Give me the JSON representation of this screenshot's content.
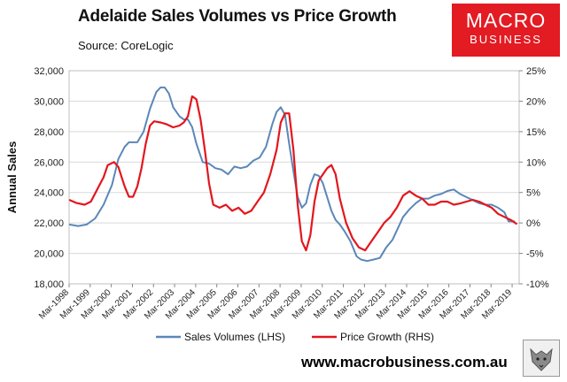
{
  "header": {
    "title": "Adelaide Sales Volumes vs Price Growth",
    "source": "Source: CoreLogic"
  },
  "logo": {
    "line1": "MACRO",
    "line2": "BUSINESS"
  },
  "footer": {
    "url": "www.macrobusiness.com.au"
  },
  "colors": {
    "sales": "#5b87b8",
    "price": "#e3161d",
    "grid": "#d9d9d9",
    "logo_bg": "#e31b23"
  },
  "chart_data": {
    "type": "line",
    "title": "Adelaide Sales Volumes vs Price Growth",
    "ylabel": "Annual Sales",
    "ylim": [
      18000,
      32000
    ],
    "y_ticks": [
      18000,
      20000,
      22000,
      24000,
      26000,
      28000,
      30000,
      32000
    ],
    "y_tick_labels": [
      "18,000",
      "20,000",
      "22,000",
      "24,000",
      "26,000",
      "28,000",
      "30,000",
      "32,000"
    ],
    "y2lim": [
      -10,
      25
    ],
    "y2_ticks": [
      -10,
      -5,
      0,
      5,
      10,
      15,
      20,
      25
    ],
    "y2_tick_labels": [
      "-10%",
      "-5%",
      "0%",
      "5%",
      "10%",
      "15%",
      "20%",
      "25%"
    ],
    "xlim": [
      1998.167,
      2019.5
    ],
    "x_tick_labels": [
      "Mar-1998",
      "Mar-1999",
      "Mar-2000",
      "Mar-2001",
      "Mar-2002",
      "Mar-2003",
      "Mar-2004",
      "Mar-2005",
      "Mar-2006",
      "Mar-2007",
      "Mar-2008",
      "Mar-2009",
      "Mar-2010",
      "Mar-2011",
      "Mar-2012",
      "Mar-2013",
      "Mar-2014",
      "Mar-2015",
      "Mar-2016",
      "Mar-2017",
      "Mar-2018",
      "Mar-2019"
    ],
    "legend": "bottom",
    "series": [
      {
        "name": "Sales Volumes (LHS)",
        "axis": "left",
        "x": [
          1998.17,
          1998.6,
          1999.0,
          1999.4,
          1999.8,
          2000.2,
          2000.5,
          2000.8,
          2001.0,
          2001.4,
          2001.7,
          2002.0,
          2002.3,
          2002.5,
          2002.7,
          2002.9,
          2003.1,
          2003.4,
          2003.6,
          2003.8,
          2004.0,
          2004.2,
          2004.5,
          2004.8,
          2005.1,
          2005.4,
          2005.7,
          2006.0,
          2006.3,
          2006.6,
          2006.9,
          2007.2,
          2007.5,
          2007.8,
          2008.0,
          2008.2,
          2008.4,
          2008.6,
          2008.8,
          2009.0,
          2009.2,
          2009.4,
          2009.6,
          2009.8,
          2010.0,
          2010.2,
          2010.4,
          2010.6,
          2010.8,
          2011.0,
          2011.2,
          2011.5,
          2011.8,
          2012.0,
          2012.3,
          2012.6,
          2012.9,
          2013.2,
          2013.5,
          2013.8,
          2014.0,
          2014.3,
          2014.6,
          2014.9,
          2015.2,
          2015.5,
          2015.8,
          2016.1,
          2016.4,
          2016.7,
          2017.0,
          2017.3,
          2017.6,
          2017.9,
          2018.2,
          2018.5,
          2018.8,
          2019.0,
          2019.3
        ],
        "values": [
          21900,
          21800,
          21900,
          22300,
          23200,
          24500,
          26200,
          27000,
          27300,
          27300,
          28000,
          29500,
          30600,
          30900,
          30900,
          30500,
          29600,
          29000,
          28800,
          28800,
          28300,
          27200,
          26000,
          25900,
          25600,
          25500,
          25200,
          25700,
          25600,
          25700,
          26100,
          26300,
          27000,
          28500,
          29300,
          29600,
          29100,
          27200,
          25400,
          23700,
          23000,
          23300,
          24500,
          25200,
          25100,
          24600,
          23700,
          22800,
          22200,
          21900,
          21500,
          20800,
          19800,
          19600,
          19500,
          19600,
          19700,
          20400,
          20900,
          21800,
          22400,
          22900,
          23300,
          23600,
          23600,
          23800,
          23900,
          24100,
          24200,
          23900,
          23700,
          23500,
          23300,
          23200,
          23200,
          23000,
          22700,
          22100,
          22100
        ]
      },
      {
        "name": "Price Growth (RHS)",
        "axis": "right",
        "x": [
          1998.17,
          1998.5,
          1998.9,
          1999.2,
          1999.5,
          1999.8,
          2000.0,
          2000.3,
          2000.5,
          2000.8,
          2001.0,
          2001.2,
          2001.4,
          2001.6,
          2001.8,
          2002.0,
          2002.2,
          2002.5,
          2002.8,
          2003.1,
          2003.4,
          2003.6,
          2003.8,
          2004.0,
          2004.2,
          2004.4,
          2004.6,
          2004.8,
          2005.0,
          2005.3,
          2005.6,
          2005.9,
          2006.2,
          2006.5,
          2006.8,
          2007.1,
          2007.4,
          2007.7,
          2008.0,
          2008.2,
          2008.4,
          2008.6,
          2008.8,
          2009.0,
          2009.2,
          2009.4,
          2009.6,
          2009.8,
          2010.0,
          2010.2,
          2010.4,
          2010.6,
          2010.8,
          2011.0,
          2011.3,
          2011.6,
          2011.9,
          2012.2,
          2012.5,
          2012.8,
          2013.1,
          2013.4,
          2013.7,
          2014.0,
          2014.3,
          2014.6,
          2014.9,
          2015.2,
          2015.5,
          2015.8,
          2016.1,
          2016.4,
          2016.7,
          2017.0,
          2017.3,
          2017.6,
          2017.9,
          2018.2,
          2018.5,
          2018.8,
          2019.1,
          2019.4
        ],
        "values": [
          3.8,
          3.3,
          3.0,
          3.5,
          5.5,
          7.5,
          9.5,
          10.0,
          9.2,
          6.0,
          4.3,
          4.3,
          6.0,
          9.0,
          13.0,
          16.0,
          16.7,
          16.5,
          16.2,
          15.7,
          16.0,
          16.5,
          17.5,
          20.8,
          20.3,
          17.0,
          12.0,
          6.5,
          3.0,
          2.5,
          3.0,
          2.0,
          2.5,
          1.5,
          2.0,
          3.5,
          5.0,
          8.0,
          12.0,
          16.5,
          18.0,
          18.0,
          12.0,
          3.0,
          -3.0,
          -4.5,
          -2.0,
          3.5,
          7.0,
          8.0,
          9.0,
          9.5,
          8.0,
          4.0,
          0.0,
          -2.5,
          -4.0,
          -4.5,
          -3.0,
          -1.5,
          0.0,
          1.0,
          2.5,
          4.5,
          5.2,
          4.5,
          4.0,
          3.0,
          3.0,
          3.5,
          3.5,
          3.0,
          3.2,
          3.5,
          3.8,
          3.5,
          3.0,
          2.5,
          1.5,
          1.0,
          0.5,
          -0.2
        ]
      }
    ]
  }
}
